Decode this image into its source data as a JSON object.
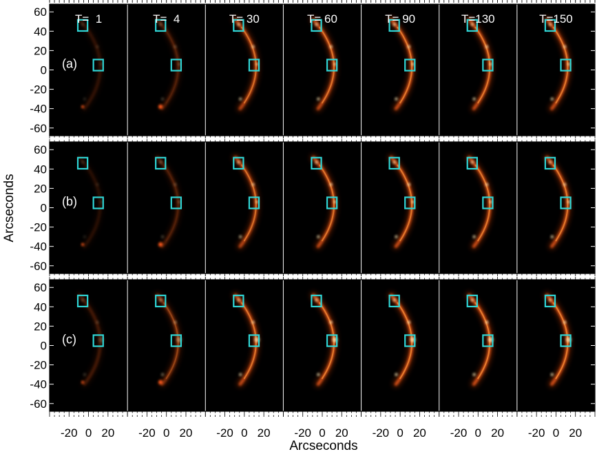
{
  "chart_data": {
    "type": "image-grid",
    "xlabel": "Arcseconds",
    "ylabel": "Arcseconds",
    "rows": [
      "(a)",
      "(b)",
      "(c)"
    ],
    "columns": [
      "T=  1",
      "T=  4",
      "T= 30",
      "T= 60",
      "T= 90",
      "T=130",
      "T=150"
    ],
    "y_ticks": [
      60,
      40,
      20,
      0,
      -20,
      -40,
      -60
    ],
    "x_ticks": [
      -20,
      0,
      20
    ],
    "xlim": [
      -40,
      40
    ],
    "ylim": [
      -68,
      68
    ],
    "boxes": [
      {
        "x_center": -6,
        "y_center": 46,
        "size": 10
      },
      {
        "x_center": 10,
        "y_center": 5,
        "size": 10
      }
    ],
    "brightness": [
      [
        0.18,
        0.3,
        0.8,
        0.85,
        0.88,
        0.88,
        0.88
      ],
      [
        0.15,
        0.3,
        0.8,
        0.85,
        0.88,
        0.88,
        0.88
      ],
      [
        0.25,
        0.5,
        0.85,
        0.9,
        0.92,
        0.92,
        0.92
      ]
    ],
    "box_color": "#2fd6d6",
    "colormap": "hot"
  }
}
